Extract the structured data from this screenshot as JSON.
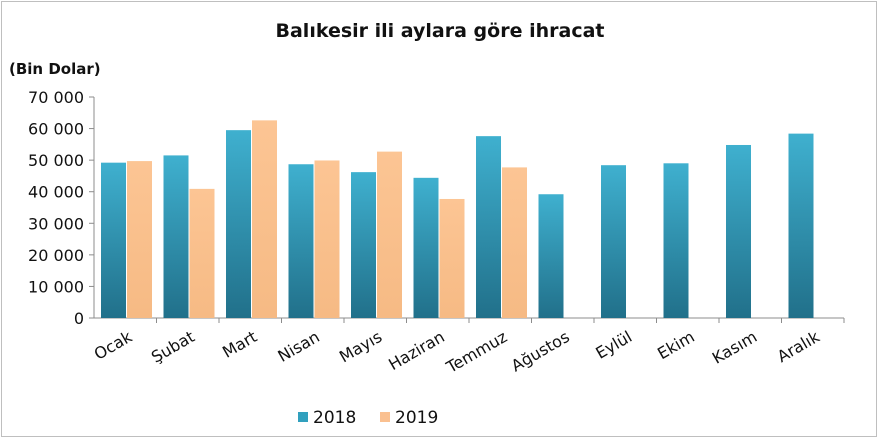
{
  "chart_data": {
    "type": "bar",
    "title": "Balıkesir ili aylara göre ihracat",
    "ylabel": "(Bin  Dolar)",
    "xlabel": "",
    "ylim": [
      0,
      70000
    ],
    "yticks": [
      0,
      10000,
      20000,
      30000,
      40000,
      50000,
      60000,
      70000
    ],
    "ytick_labels": [
      "0",
      "10 000",
      "20 000",
      "30 000",
      "40 000",
      "50 000",
      "60 000",
      "70 000"
    ],
    "categories": [
      "Ocak",
      "Şubat",
      "Mart",
      "Nisan",
      "Mayıs",
      "Haziran",
      "Temmuz",
      "Ağustos",
      "Eylül",
      "Ekim",
      "Kasım",
      "Aralık"
    ],
    "series": [
      {
        "name": "2018",
        "color": "#31A0BE",
        "values": [
          49200,
          51500,
          59500,
          48700,
          46200,
          44400,
          57600,
          39200,
          48400,
          49000,
          54800,
          58400
        ]
      },
      {
        "name": "2019",
        "color": "#FAC090",
        "values": [
          49700,
          40900,
          62600,
          49900,
          52700,
          37700,
          47700,
          null,
          null,
          null,
          null,
          null
        ]
      }
    ],
    "grid": false,
    "legend": "bottom"
  }
}
